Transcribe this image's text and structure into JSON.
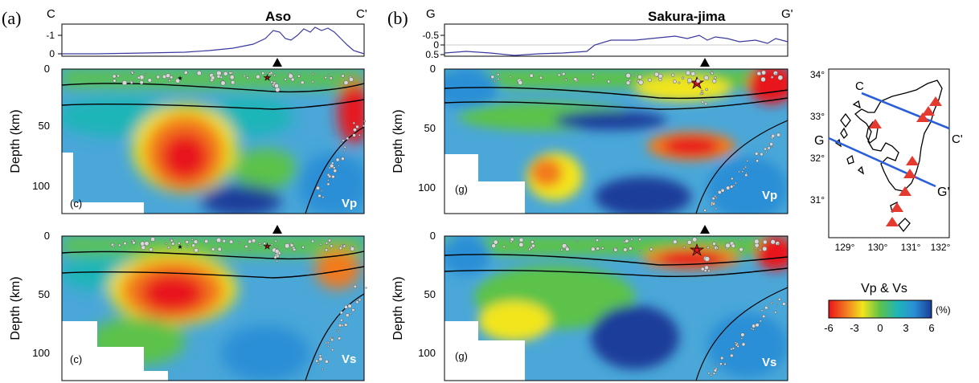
{
  "panel_a": {
    "label": "(a)",
    "profile_start": "C",
    "profile_end": "C'",
    "volcano": "Aso",
    "elevation_ticks": [
      "-1",
      "0"
    ],
    "depth_ticks": [
      "0",
      "50",
      "100"
    ],
    "ylabel": "Depth (km)",
    "sections": [
      {
        "sublabel": "(c)",
        "phase": "Vp"
      },
      {
        "sublabel": "(c)",
        "phase": "Vs"
      }
    ]
  },
  "panel_b": {
    "label": "(b)",
    "profile_start": "G",
    "profile_end": "G'",
    "volcano": "Sakura-jima",
    "elevation_ticks": [
      "-0.5",
      "0",
      "0.5"
    ],
    "depth_ticks": [
      "0",
      "50",
      "100"
    ],
    "ylabel": "Depth (km)",
    "sections": [
      {
        "sublabel": "(g)",
        "phase": "Vp"
      },
      {
        "sublabel": "(g)",
        "phase": "Vs"
      }
    ]
  },
  "map": {
    "lat_ticks": [
      "34°",
      "33°",
      "32°",
      "31°"
    ],
    "lon_ticks": [
      "129°",
      "130°",
      "131°",
      "132°"
    ],
    "line1": {
      "start": "C",
      "end": "C'"
    },
    "line2": {
      "start": "G",
      "end": "G'"
    }
  },
  "colorbar": {
    "title": "Vp & Vs",
    "unit": "(%)",
    "ticks": [
      "-6",
      "-3",
      "0",
      "3",
      "6"
    ],
    "colors": [
      "#e8141c",
      "#f27a1e",
      "#f2e51e",
      "#5bc24a",
      "#1fb5b8",
      "#2a8fd6",
      "#1a3e9a"
    ]
  },
  "colors": {
    "elevation_line": "#3a3aa0",
    "map_line": "#2b5fd9",
    "volcano_marker": "#e53a2f"
  }
}
